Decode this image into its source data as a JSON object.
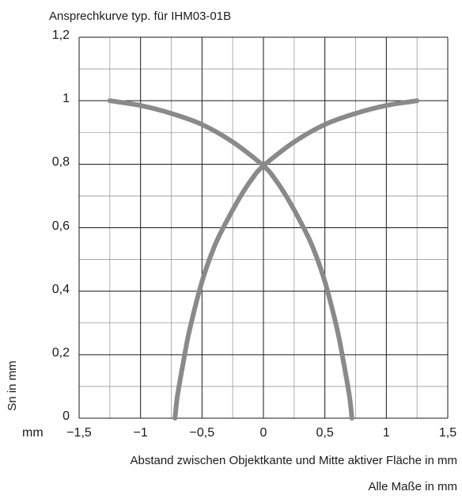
{
  "chart_data": {
    "type": "line",
    "title": "Ansprechkurve typ. für IHM03-01B",
    "xlabel": "Abstand zwischen Objektkante und Mitte aktiver Fläche in mm",
    "ylabel": "Sn in mm",
    "x_unit": "mm",
    "footnote": "Alle Maße in mm",
    "xlim": [
      -1.5,
      1.5
    ],
    "ylim": [
      0,
      1.2
    ],
    "x_ticks": [
      "−1,5",
      "−1",
      "−0,5",
      "0",
      "0,5",
      "1",
      "1,5"
    ],
    "y_ticks": [
      "0",
      "0,2",
      "0,4",
      "0,6",
      "0,8",
      "1",
      "1,2"
    ],
    "grid": true,
    "grid_minor": true,
    "line_color": "#8a8a8a",
    "series": [
      {
        "x": [
          -1.25,
          -1.0,
          -0.75,
          -0.5,
          -0.25,
          0.0,
          0.1,
          0.2,
          0.3,
          0.4,
          0.5,
          0.6,
          0.65,
          0.7,
          0.72
        ],
        "y": [
          1.0,
          0.985,
          0.96,
          0.925,
          0.87,
          0.795,
          0.75,
          0.69,
          0.62,
          0.54,
          0.43,
          0.28,
          0.18,
          0.07,
          0.0
        ]
      },
      {
        "x": [
          1.25,
          1.0,
          0.75,
          0.5,
          0.25,
          0.0,
          -0.1,
          -0.2,
          -0.3,
          -0.4,
          -0.5,
          -0.6,
          -0.65,
          -0.7,
          -0.72
        ],
        "y": [
          1.0,
          0.985,
          0.96,
          0.925,
          0.87,
          0.795,
          0.75,
          0.69,
          0.62,
          0.54,
          0.43,
          0.28,
          0.18,
          0.07,
          0.0
        ]
      }
    ]
  }
}
